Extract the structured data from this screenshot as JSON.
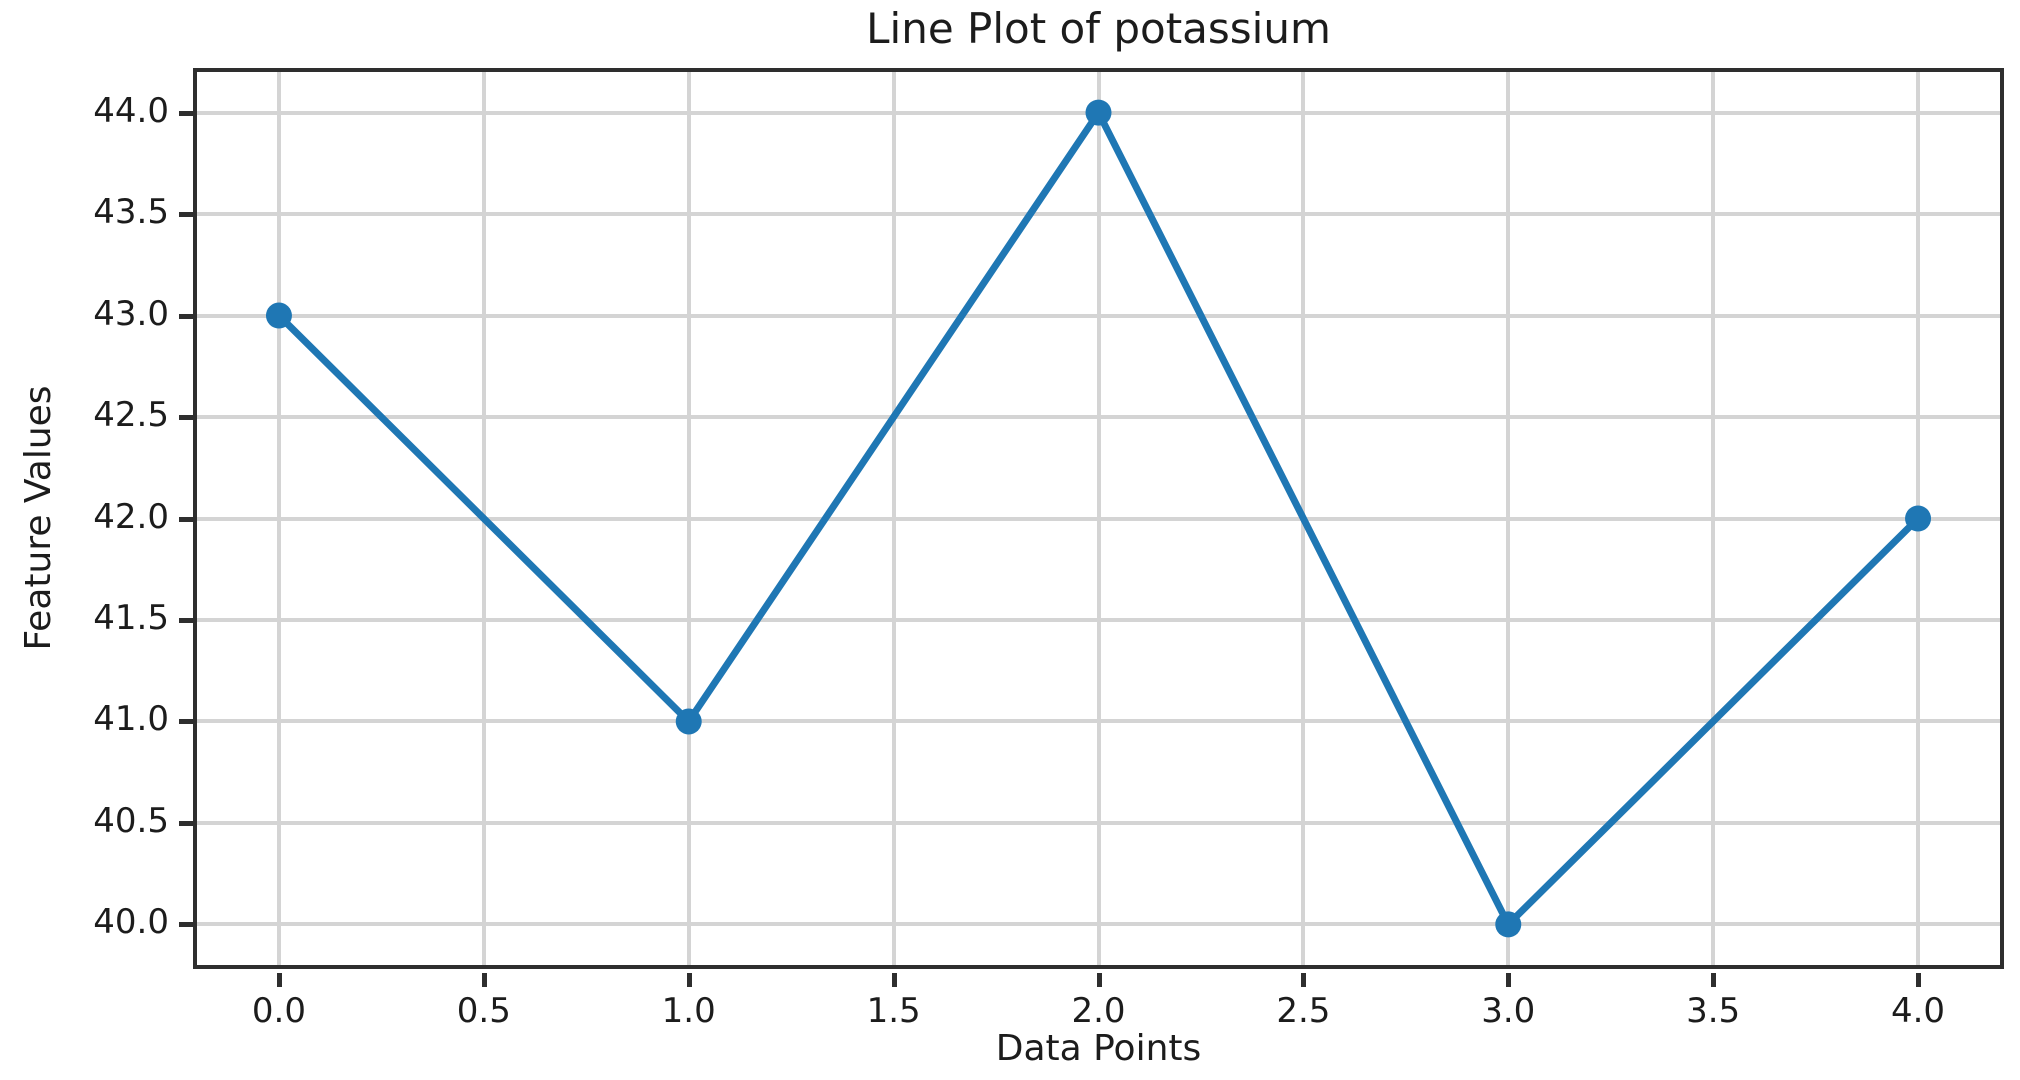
{
  "figure": {
    "background": "#ffffff"
  },
  "chart_data": {
    "type": "line",
    "title": "Line Plot of potassium",
    "xlabel": "Data Points",
    "ylabel": "Feature Values",
    "x": [
      0,
      1,
      2,
      3,
      4
    ],
    "series": [
      {
        "name": "potassium",
        "values": [
          43,
          41,
          44,
          40,
          42
        ]
      }
    ],
    "xlim": [
      -0.2,
      4.2
    ],
    "ylim": [
      39.8,
      44.2
    ],
    "xtick_labels": [
      "0.0",
      "0.5",
      "1.0",
      "1.5",
      "2.0",
      "2.5",
      "3.0",
      "3.5",
      "4.0"
    ],
    "ytick_labels": [
      "40.0",
      "40.5",
      "41.0",
      "41.5",
      "42.0",
      "42.5",
      "43.0",
      "43.5",
      "44.0"
    ],
    "grid": true,
    "legend_position": "none",
    "marker": "circle",
    "colors": {
      "line": "#1f77b4",
      "marker": "#1f77b4",
      "grid": "#d4d4d4",
      "spine": "#2e2e2e",
      "text": "#1c1c1c",
      "background": "#ffffff"
    }
  }
}
